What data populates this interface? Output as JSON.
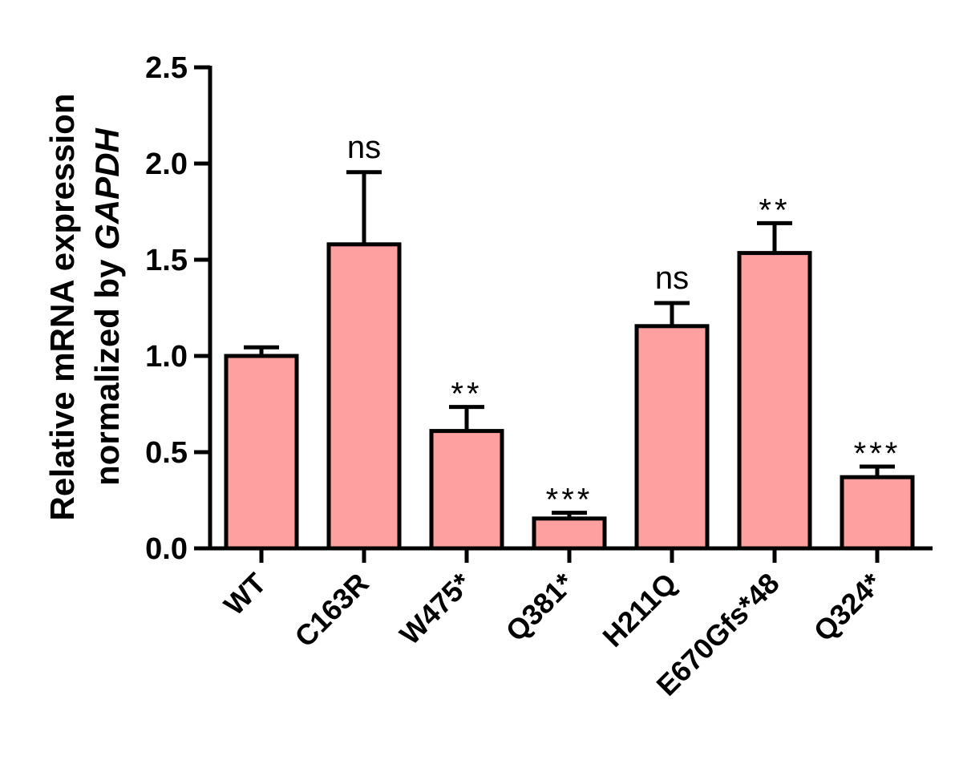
{
  "chart_data": {
    "type": "bar",
    "title": "",
    "xlabel": "",
    "ylabel_line1": "Relative mRNA expression",
    "ylabel_line2_prefix": "normalized by ",
    "ylabel_line2_gene": "GAPDH",
    "ylim": [
      0,
      2.5
    ],
    "yticks": [
      "0.0",
      "0.5",
      "1.0",
      "1.5",
      "2.0",
      "2.5"
    ],
    "ytick_values": [
      0,
      0.5,
      1.0,
      1.5,
      2.0,
      2.5
    ],
    "categories": [
      "WT",
      "C163R",
      "W475*",
      "Q381*",
      "H211Q",
      "E670Gfs*48",
      "Q324*"
    ],
    "values": [
      1.0,
      1.58,
      0.61,
      0.155,
      1.155,
      1.535,
      0.37
    ],
    "errors": [
      0.045,
      0.375,
      0.125,
      0.03,
      0.12,
      0.155,
      0.055
    ],
    "significance": [
      "",
      "ns",
      "**",
      "***",
      "ns",
      "**",
      "***"
    ],
    "bar_color": "#ffa0a0",
    "grid": false,
    "legend": "none"
  }
}
